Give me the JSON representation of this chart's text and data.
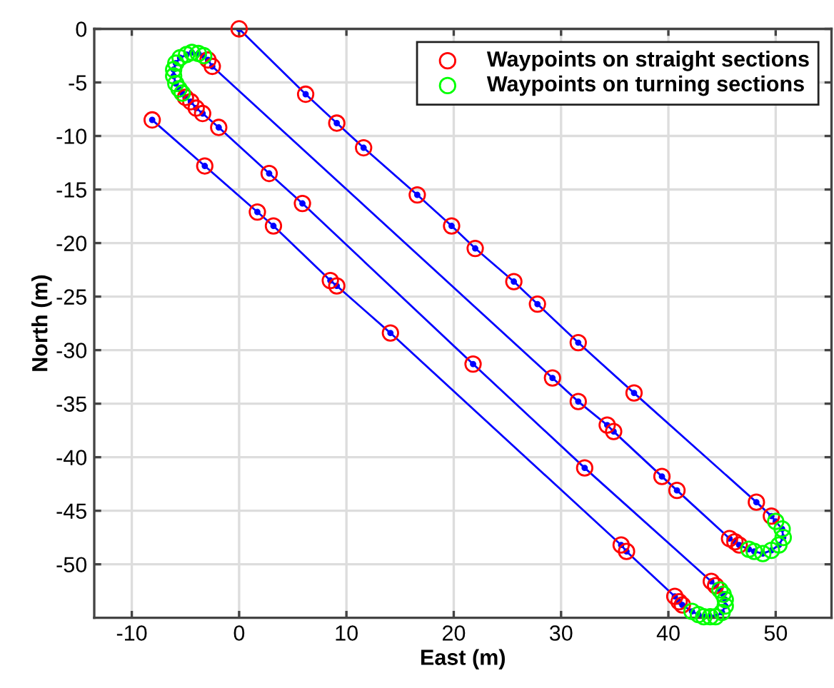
{
  "chart_data": {
    "type": "line",
    "xlabel": "East (m)",
    "ylabel": "North (m)",
    "xlim": [
      -13.5,
      55.2
    ],
    "ylim": [
      -55,
      0
    ],
    "xticks": [
      -10,
      0,
      10,
      20,
      30,
      40,
      50
    ],
    "yticks": [
      -50,
      -45,
      -40,
      -35,
      -30,
      -25,
      -20,
      -15,
      -10,
      -5,
      0
    ],
    "grid": true,
    "legend": "top right",
    "series": [
      {
        "color": "#0000ff",
        "marker": "circle",
        "line_style": "solid",
        "x": [
          0,
          6.2,
          9.1,
          11.6,
          16.6,
          19.8,
          22.0,
          25.6,
          27.8,
          31.6,
          36.8,
          48.2,
          49.6,
          50.0,
          50.6,
          50.7,
          50.3,
          49.6,
          48.8,
          48.0,
          47.5,
          46.6,
          46.2,
          45.7,
          40.8,
          39.4,
          34.9,
          34.3,
          31.6,
          29.2,
          -2.5,
          -2.9,
          -3.3,
          -3.8,
          -4.4,
          -4.9,
          -5.5,
          -5.9,
          -6.1,
          -6.1,
          -5.9,
          -5.6,
          -5.3,
          -5.0,
          -4.5,
          -4.0,
          -3.4,
          -1.9,
          2.8,
          5.9,
          21.8,
          32.2,
          44.0,
          44.4,
          44.8,
          45.1,
          45.3,
          45.3,
          45.0,
          44.4,
          43.9,
          43.3,
          42.8,
          42.2,
          41.3,
          41.0,
          40.6,
          36.1,
          35.6,
          14.1,
          9.1,
          8.5,
          3.2,
          1.7,
          -3.2,
          -8.1
        ],
        "values": [
          0,
          -6.1,
          -8.8,
          -11.1,
          -15.5,
          -18.4,
          -20.5,
          -23.6,
          -25.7,
          -29.3,
          -34.0,
          -44.2,
          -45.5,
          -46.0,
          -46.7,
          -47.5,
          -48.2,
          -48.7,
          -49.0,
          -48.8,
          -48.6,
          -48.2,
          -47.9,
          -47.6,
          -43.1,
          -41.8,
          -37.6,
          -37.0,
          -34.8,
          -32.6,
          -3.5,
          -2.9,
          -2.5,
          -2.3,
          -2.2,
          -2.4,
          -2.7,
          -3.2,
          -3.8,
          -4.4,
          -5.1,
          -5.6,
          -6.0,
          -6.4,
          -6.8,
          -7.4,
          -7.9,
          -9.2,
          -13.5,
          -16.3,
          -31.3,
          -41.0,
          -51.6,
          -52.0,
          -52.4,
          -52.8,
          -53.3,
          -53.9,
          -54.5,
          -54.9,
          -54.9,
          -54.9,
          -54.7,
          -54.4,
          -53.8,
          -53.5,
          -53.0,
          -48.8,
          -48.2,
          -28.4,
          -24.0,
          -23.5,
          -18.4,
          -17.1,
          -12.8,
          -8.5
        ]
      },
      {
        "type": "scatter",
        "name": "Waypoints on straight sections",
        "color": "#ff0000",
        "marker": "circle",
        "x": [
          0,
          6.2,
          9.1,
          11.6,
          16.6,
          19.8,
          22.0,
          25.6,
          27.8,
          31.6,
          36.8,
          48.2,
          49.6,
          46.6,
          46.2,
          45.7,
          40.8,
          39.4,
          34.9,
          34.3,
          31.6,
          29.2,
          -2.5,
          -2.9,
          -5.0,
          -4.5,
          -4.0,
          -3.4,
          -1.9,
          2.8,
          5.9,
          21.8,
          32.2,
          44.0,
          44.4,
          41.3,
          41.0,
          40.6,
          36.1,
          35.6,
          14.1,
          9.1,
          8.5,
          3.2,
          1.7,
          -3.2,
          -8.1
        ],
        "values": [
          0,
          -6.1,
          -8.8,
          -11.1,
          -15.5,
          -18.4,
          -20.5,
          -23.6,
          -25.7,
          -29.3,
          -34.0,
          -44.2,
          -45.5,
          -48.2,
          -47.9,
          -47.6,
          -43.1,
          -41.8,
          -37.6,
          -37.0,
          -34.8,
          -32.6,
          -3.5,
          -2.9,
          -6.4,
          -6.8,
          -7.4,
          -7.9,
          -9.2,
          -13.5,
          -16.3,
          -31.3,
          -41.0,
          -51.6,
          -52.0,
          -53.8,
          -53.5,
          -53.0,
          -48.8,
          -48.2,
          -28.4,
          -24.0,
          -23.5,
          -18.4,
          -17.1,
          -12.8,
          -8.5
        ]
      },
      {
        "type": "scatter",
        "name": "Waypoints on turning sections",
        "color": "#00ff00",
        "marker": "circle",
        "x": [
          50.0,
          50.6,
          50.7,
          50.3,
          49.6,
          48.8,
          48.0,
          47.5,
          -3.3,
          -3.8,
          -4.4,
          -4.9,
          -5.5,
          -5.9,
          -6.1,
          -6.1,
          -5.9,
          -5.6,
          -5.3,
          44.8,
          45.1,
          45.3,
          45.3,
          45.0,
          44.4,
          43.9,
          43.3,
          42.8,
          42.2
        ],
        "values": [
          -46.0,
          -46.7,
          -47.5,
          -48.2,
          -48.7,
          -49.0,
          -48.8,
          -48.6,
          -2.5,
          -2.3,
          -2.2,
          -2.4,
          -2.7,
          -3.2,
          -3.8,
          -4.4,
          -5.1,
          -5.6,
          -6.0,
          -52.4,
          -52.8,
          -53.3,
          -53.9,
          -54.5,
          -54.9,
          -54.9,
          -54.9,
          -54.7,
          -54.4
        ]
      }
    ]
  }
}
